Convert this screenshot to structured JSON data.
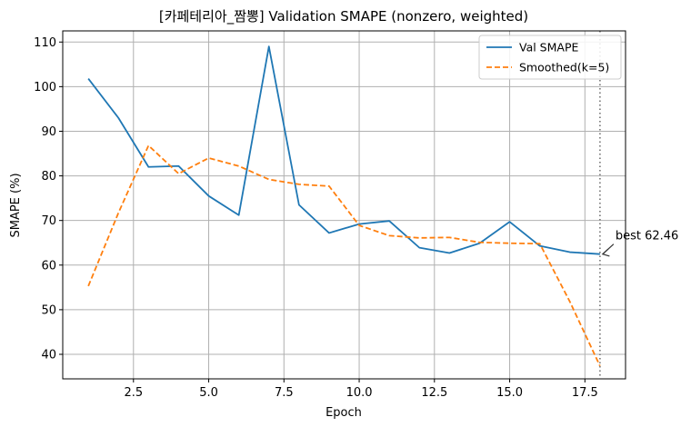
{
  "chart_data": {
    "type": "line",
    "title": "[카페테리아_짬뽕] Validation SMAPE (nonzero, weighted)",
    "xlabel": "Epoch",
    "ylabel": "SMAPE (%)",
    "xlim": [
      0.15,
      18.85
    ],
    "ylim": [
      34.5,
      112.5
    ],
    "xticks": [
      2.5,
      5.0,
      7.5,
      10.0,
      12.5,
      15.0,
      17.5
    ],
    "xtick_labels": [
      "2.5",
      "5.0",
      "7.5",
      "10.0",
      "12.5",
      "15.0",
      "17.5"
    ],
    "yticks": [
      40,
      50,
      60,
      70,
      80,
      90,
      100,
      110
    ],
    "ytick_labels": [
      "40",
      "50",
      "60",
      "70",
      "80",
      "90",
      "100",
      "110"
    ],
    "grid": true,
    "legend_position": "top-right",
    "x": [
      1,
      2,
      3,
      4,
      5,
      6,
      7,
      8,
      9,
      10,
      11,
      12,
      13,
      14,
      15,
      16,
      17,
      18
    ],
    "series": [
      {
        "name": "Val SMAPE",
        "color": "#1f77b4",
        "style": "solid",
        "values": [
          101.8,
          93.0,
          82.0,
          82.2,
          75.5,
          71.2,
          109.0,
          73.5,
          67.2,
          69.2,
          69.9,
          63.9,
          62.7,
          64.9,
          69.7,
          64.3,
          62.9,
          62.46
        ]
      },
      {
        "name": "Smoothed(k=5)",
        "color": "#ff7f0e",
        "style": "dashed",
        "values": [
          55.3,
          71.7,
          86.8,
          80.5,
          84.0,
          82.2,
          79.2,
          78.1,
          77.7,
          68.9,
          66.6,
          66.1,
          66.2,
          65.1,
          64.9,
          64.8,
          51.8,
          37.4
        ]
      }
    ],
    "vline": {
      "x": 18,
      "style": "dotted",
      "color": "#808080"
    },
    "annotation": {
      "text": "best 62.46",
      "x": 18,
      "y": 62.46,
      "arrow": true
    }
  }
}
